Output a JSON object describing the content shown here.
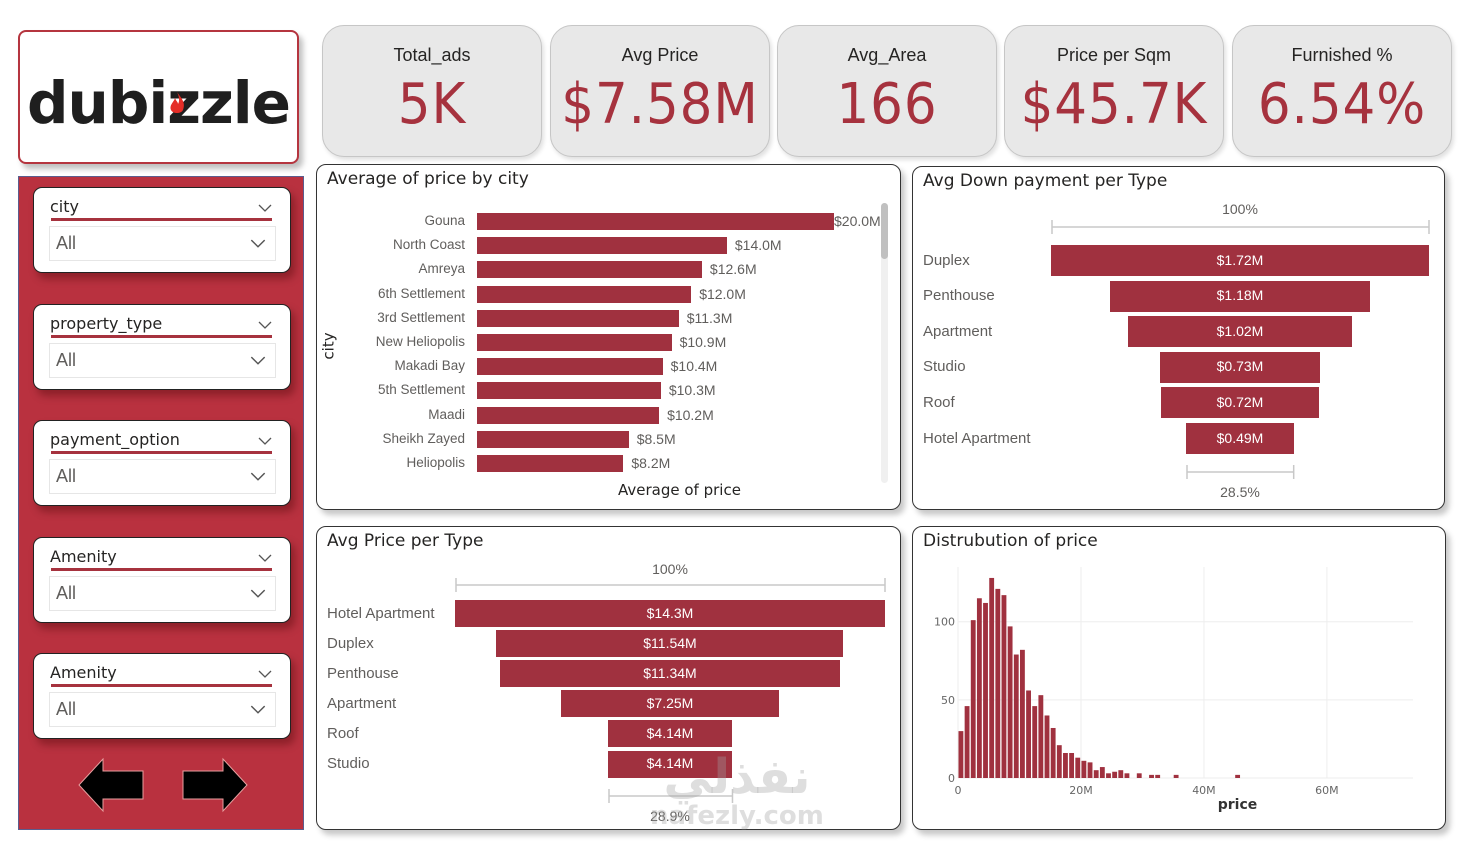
{
  "logo": {
    "text": "dubizzle",
    "flame_color": "#e52d27"
  },
  "kpis": [
    {
      "label": "Total_ads",
      "value": "5K"
    },
    {
      "label": "Avg Price",
      "value": "$7.58M"
    },
    {
      "label": "Avg_Area",
      "value": "166"
    },
    {
      "label": "Price per Sqm",
      "value": "$45.7K"
    },
    {
      "label": "Furnished %",
      "value": "6.54%"
    }
  ],
  "slicers": [
    {
      "title": "city",
      "value": "All"
    },
    {
      "title": "property_type",
      "value": "All"
    },
    {
      "title": "payment_option",
      "value": "All"
    },
    {
      "title": "Amenity",
      "value": "All"
    },
    {
      "title": "Amenity",
      "value": "All"
    }
  ],
  "navigation": {
    "back": "back-arrow",
    "forward": "forward-arrow"
  },
  "colors": {
    "accent": "#a0313f",
    "sidebar": "#b9313f",
    "kpi_value": "#a6323e",
    "kpi_bg": "#e8e8e8"
  },
  "watermark": {
    "arabic": "نفذلي",
    "latin": "nafezly.com"
  },
  "chart_data": [
    {
      "id": "price-by-city",
      "type": "bar",
      "orientation": "horizontal",
      "title": "Average of price by city",
      "xlabel": "Average of price",
      "ylabel": "city",
      "categories": [
        "Gouna",
        "North Coast",
        "Amreya",
        "6th Settlement",
        "3rd Settlement",
        "New Heliopolis",
        "Makadi Bay",
        "5th Settlement",
        "Maadi",
        "Sheikh Zayed",
        "Heliopolis"
      ],
      "values": [
        20.0,
        14.0,
        12.6,
        12.0,
        11.3,
        10.9,
        10.4,
        10.3,
        10.2,
        8.5,
        8.2
      ],
      "value_labels": [
        "$20.0M",
        "$14.0M",
        "$12.6M",
        "$12.0M",
        "$11.3M",
        "$10.9M",
        "$10.4M",
        "$10.3M",
        "$10.2M",
        "$8.5M",
        "$8.2M"
      ],
      "units": "M USD",
      "xlim": [
        0,
        20.0
      ]
    },
    {
      "id": "down-payment-per-type",
      "type": "bar",
      "subtype": "funnel",
      "title": "Avg Down payment per Type",
      "categories": [
        "Duplex",
        "Penthouse",
        "Apartment",
        "Studio",
        "Roof",
        "Hotel Apartment"
      ],
      "values": [
        1.72,
        1.18,
        1.02,
        0.73,
        0.72,
        0.49
      ],
      "value_labels": [
        "$1.72M",
        "$1.18M",
        "$1.02M",
        "$0.73M",
        "$0.72M",
        "$0.49M"
      ],
      "top_label": "100%",
      "bottom_label": "28.5%"
    },
    {
      "id": "price-per-type",
      "type": "bar",
      "subtype": "funnel",
      "title": "Avg Price per Type",
      "categories": [
        "Hotel Apartment",
        "Duplex",
        "Penthouse",
        "Apartment",
        "Roof",
        "Studio"
      ],
      "values": [
        14.3,
        11.54,
        11.34,
        7.25,
        4.14,
        4.14
      ],
      "value_labels": [
        "$14.3M",
        "$11.54M",
        "$11.34M",
        "$7.25M",
        "$4.14M",
        "$4.14M"
      ],
      "top_label": "100%",
      "bottom_label": "28.9%"
    },
    {
      "id": "price-distribution",
      "type": "bar",
      "subtype": "histogram",
      "title": "Distrubution of price",
      "xlabel": "price",
      "ylabel": "",
      "bin_width_millions": 1,
      "bin_start_millions": 0,
      "counts": [
        30,
        46,
        101,
        115,
        112,
        128,
        121,
        117,
        97,
        79,
        82,
        56,
        46,
        53,
        40,
        32,
        21,
        16,
        16,
        13,
        11,
        10,
        5,
        7,
        3,
        4,
        5,
        3,
        0,
        3,
        0,
        2,
        2,
        0,
        0,
        2,
        0,
        0,
        0,
        0,
        0,
        0,
        0,
        0,
        0,
        2
      ],
      "xticks": [
        "0",
        "20M",
        "40M",
        "60M"
      ],
      "xtick_values": [
        0,
        20,
        40,
        60
      ],
      "yticks": [
        "0",
        "50",
        "100"
      ],
      "ytick_values": [
        0,
        50,
        100
      ],
      "xlim": [
        0,
        74
      ],
      "ylim": [
        0,
        135
      ],
      "grid": true
    }
  ]
}
